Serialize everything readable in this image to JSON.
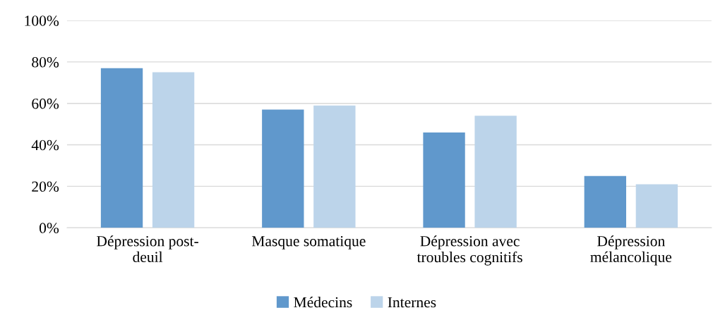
{
  "chart_data": {
    "type": "bar",
    "categories": [
      "Dépression post-\ndeuil",
      "Masque somatique",
      "Dépression avec\ntroubles cognitifs",
      "Dépression\nmélancolique"
    ],
    "series": [
      {
        "name": "Médecins",
        "color": "#6098cc",
        "values": [
          77,
          57,
          46,
          25
        ]
      },
      {
        "name": "Internes",
        "color": "#bcd4ea",
        "values": [
          75,
          59,
          54,
          21
        ]
      }
    ],
    "ylim": [
      0,
      100
    ],
    "yticks": [
      {
        "value": 0,
        "label": "0%"
      },
      {
        "value": 20,
        "label": "20%"
      },
      {
        "value": 40,
        "label": "40%"
      },
      {
        "value": 60,
        "label": "60%"
      },
      {
        "value": 80,
        "label": "80%"
      },
      {
        "value": 100,
        "label": "100%"
      }
    ],
    "grid": "y",
    "legend": "bottom"
  }
}
